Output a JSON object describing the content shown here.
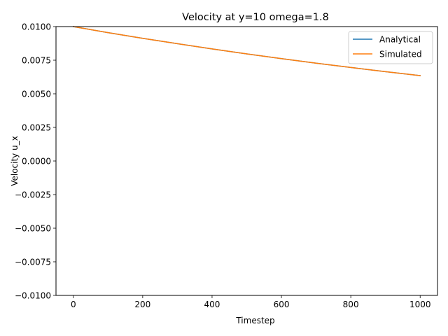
{
  "chart_data": {
    "type": "line",
    "title": "Velocity at y=10 omega=1.8",
    "xlabel": "Timestep",
    "ylabel": "Velocity u_x",
    "xlim": [
      -50,
      1050
    ],
    "ylim": [
      -0.01,
      0.01
    ],
    "x_ticks": [
      0,
      200,
      400,
      600,
      800,
      1000
    ],
    "x_tick_labels": [
      "0",
      "200",
      "400",
      "600",
      "800",
      "1000"
    ],
    "y_ticks": [
      -0.01,
      -0.0075,
      -0.005,
      -0.0025,
      0.0,
      0.0025,
      0.005,
      0.0075,
      0.01
    ],
    "y_tick_labels": [
      "−0.0100",
      "−0.0075",
      "−0.0050",
      "−0.0025",
      "0.0000",
      "0.0025",
      "0.0050",
      "0.0075",
      "0.0100"
    ],
    "grid": false,
    "legend_position": "top-right",
    "series": [
      {
        "name": "Analytical",
        "color": "#1f77b4",
        "x": [
          0,
          100,
          200,
          300,
          400,
          500,
          600,
          700,
          800,
          900,
          1000
        ],
        "y": [
          0.01,
          0.00955,
          0.00913,
          0.00873,
          0.00834,
          0.00797,
          0.00762,
          0.00728,
          0.00696,
          0.00665,
          0.00635
        ]
      },
      {
        "name": "Simulated",
        "color": "#ff7f0e",
        "x": [
          0,
          100,
          200,
          300,
          400,
          500,
          600,
          700,
          800,
          900,
          1000
        ],
        "y": [
          0.01,
          0.00955,
          0.00913,
          0.00873,
          0.00834,
          0.00797,
          0.00762,
          0.00728,
          0.00696,
          0.00665,
          0.00635
        ]
      }
    ]
  }
}
